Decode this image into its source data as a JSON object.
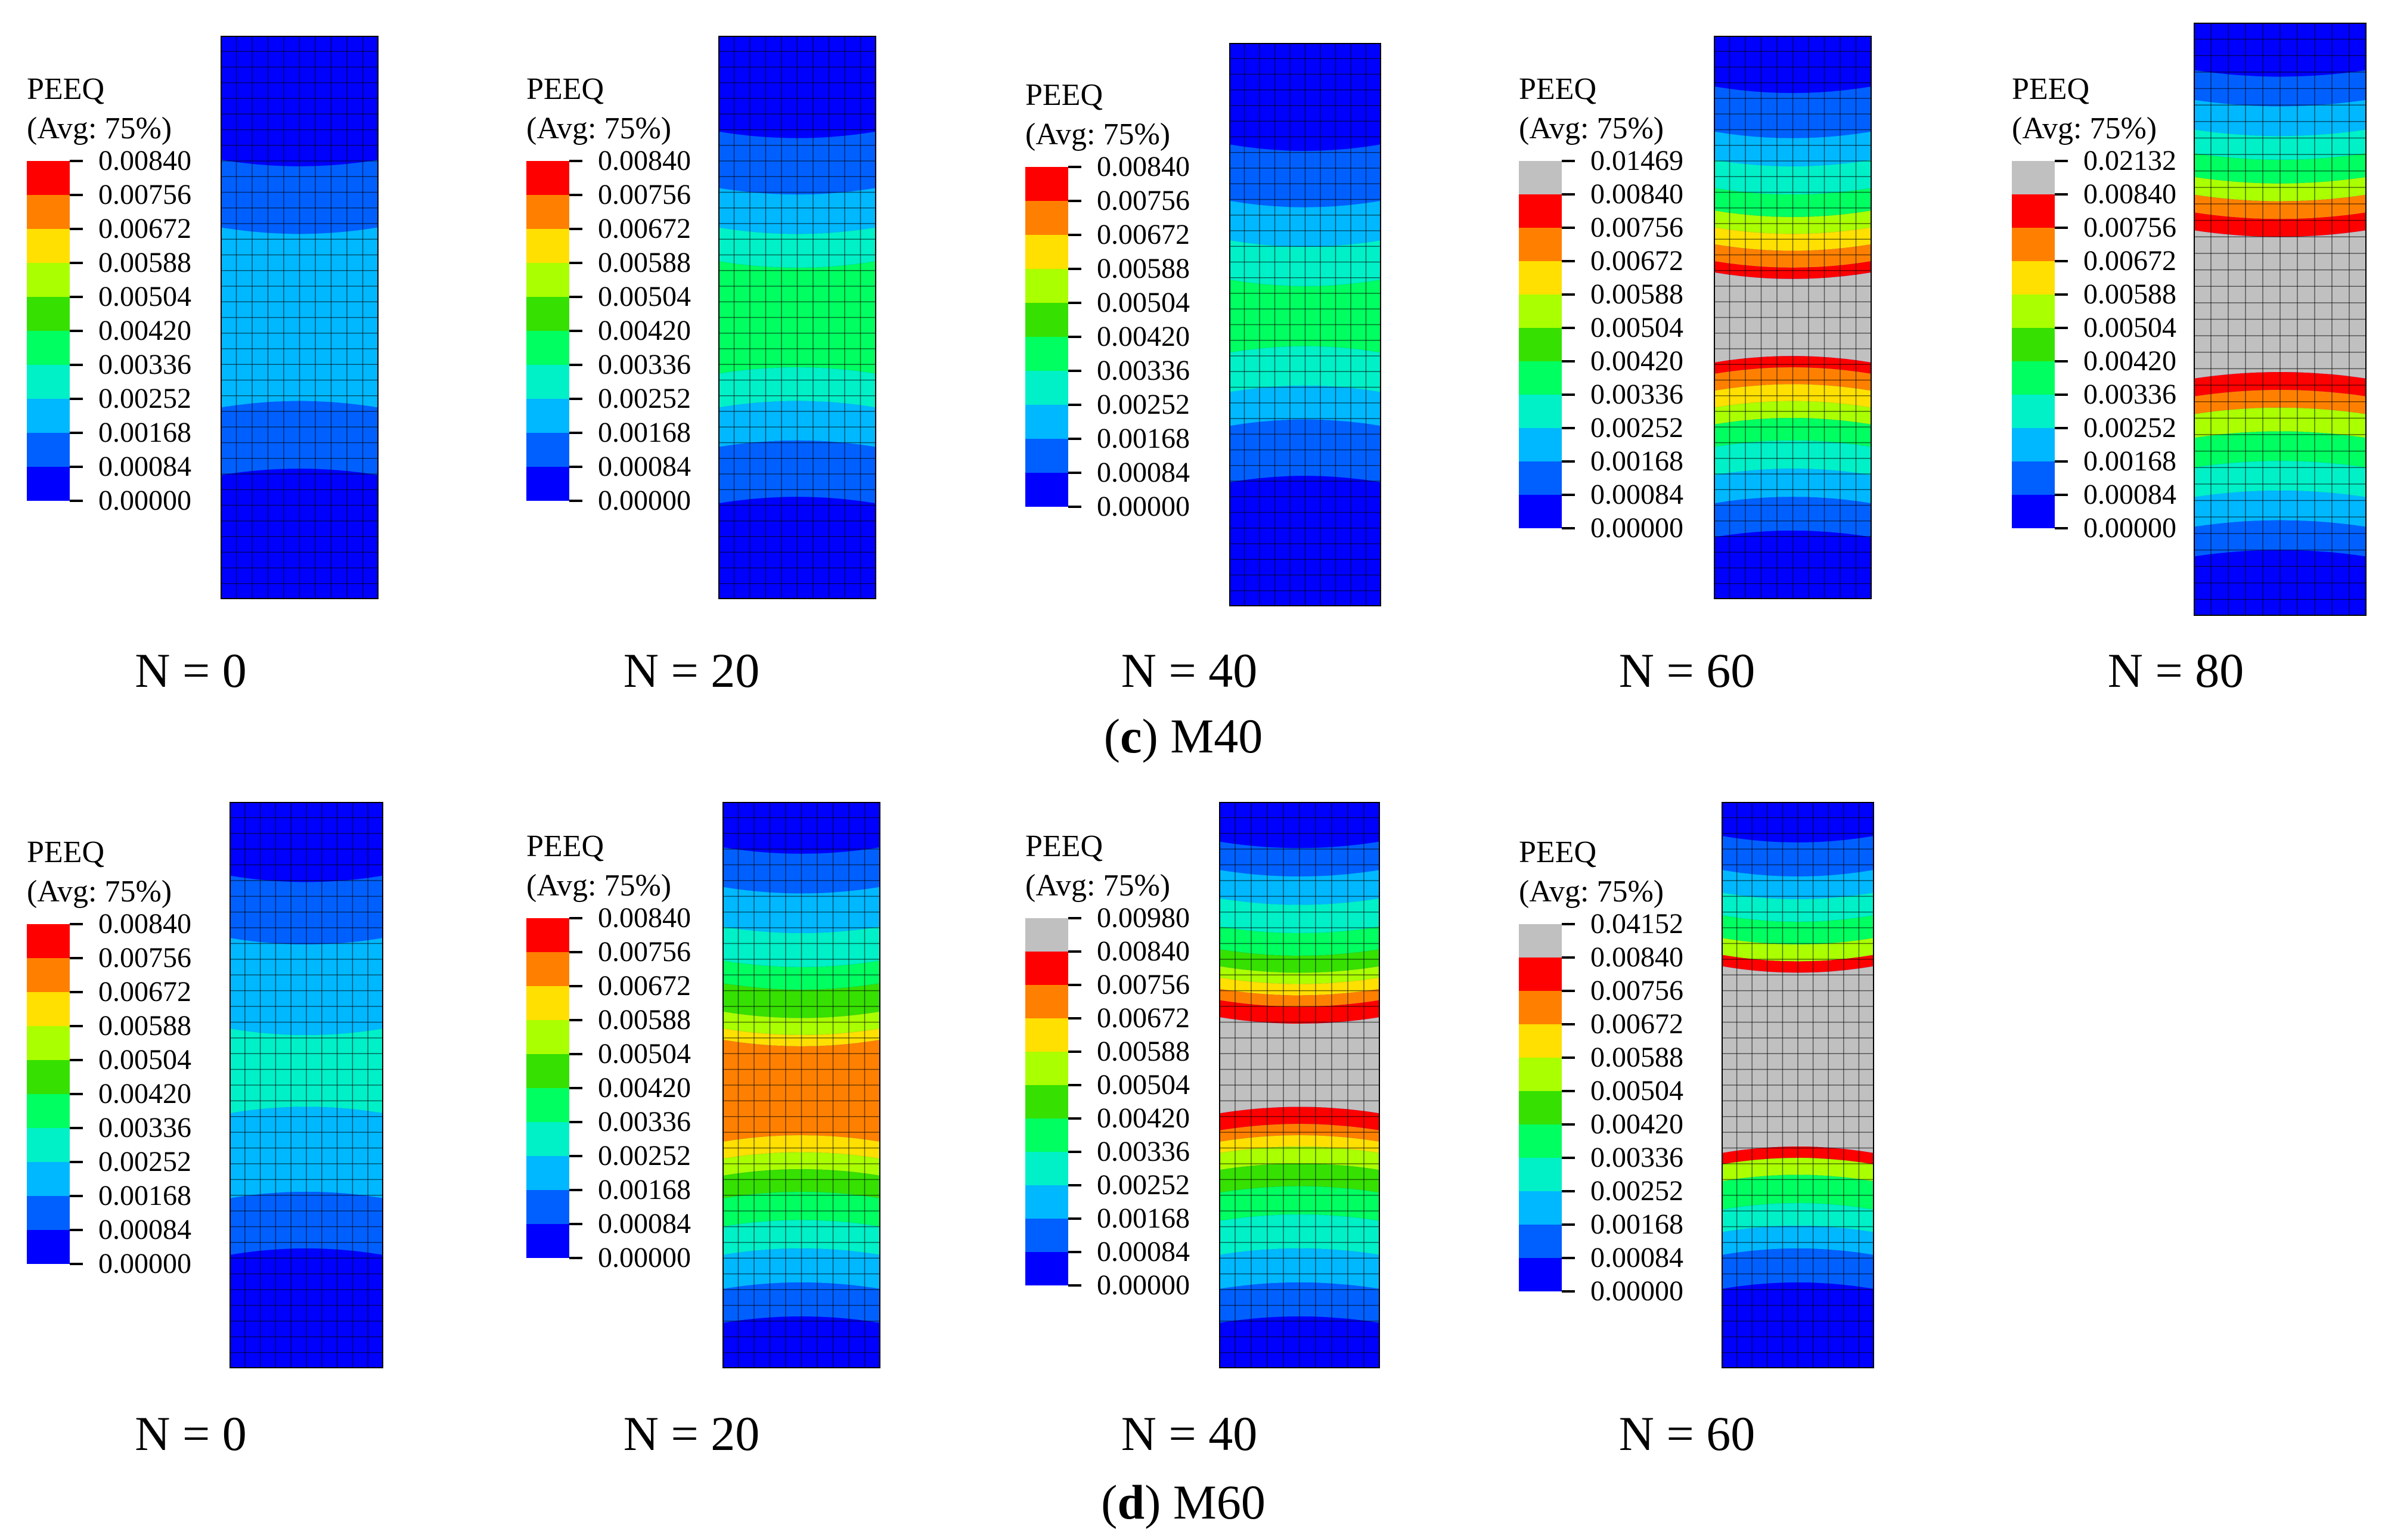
{
  "legend_header": {
    "title": "PEEQ",
    "subtitle": "(Avg: 75%)"
  },
  "colors": [
    "#0000ff",
    "#0060ff",
    "#00b8ff",
    "#00f0c8",
    "#00ff60",
    "#36e000",
    "#aaff00",
    "#ffe000",
    "#ff8000",
    "#ff0000",
    "#c0c0c0"
  ],
  "rows": [
    {
      "caption_label": "c",
      "caption_name": "M40",
      "panels": [
        {
          "n": "N = 0",
          "values": [
            "0.00840",
            "0.00756",
            "0.00672",
            "0.00588",
            "0.00504",
            "0.00420",
            "0.00336",
            "0.00252",
            "0.00168",
            "0.00084",
            "0.00000"
          ],
          "has_over": false,
          "state": "c0"
        },
        {
          "n": "N = 20",
          "values": [
            "0.00840",
            "0.00756",
            "0.00672",
            "0.00588",
            "0.00504",
            "0.00420",
            "0.00336",
            "0.00252",
            "0.00168",
            "0.00084",
            "0.00000"
          ],
          "has_over": false,
          "state": "c20"
        },
        {
          "n": "N = 40",
          "values": [
            "0.00840",
            "0.00756",
            "0.00672",
            "0.00588",
            "0.00504",
            "0.00420",
            "0.00336",
            "0.00252",
            "0.00168",
            "0.00084",
            "0.00000"
          ],
          "has_over": false,
          "state": "c40"
        },
        {
          "n": "N = 60",
          "values": [
            "0.01469",
            "0.00840",
            "0.00756",
            "0.00672",
            "0.00588",
            "0.00504",
            "0.00420",
            "0.00336",
            "0.00252",
            "0.00168",
            "0.00084",
            "0.00000"
          ],
          "has_over": true,
          "state": "c60"
        },
        {
          "n": "N = 80",
          "values": [
            "0.02132",
            "0.00840",
            "0.00756",
            "0.00672",
            "0.00588",
            "0.00504",
            "0.00420",
            "0.00336",
            "0.00252",
            "0.00168",
            "0.00084",
            "0.00000"
          ],
          "has_over": true,
          "state": "c80"
        }
      ]
    },
    {
      "caption_label": "d",
      "caption_name": "M60",
      "panels": [
        {
          "n": "N = 0",
          "values": [
            "0.00840",
            "0.00756",
            "0.00672",
            "0.00588",
            "0.00504",
            "0.00420",
            "0.00336",
            "0.00252",
            "0.00168",
            "0.00084",
            "0.00000"
          ],
          "has_over": false,
          "state": "d0"
        },
        {
          "n": "N = 20",
          "values": [
            "0.00840",
            "0.00756",
            "0.00672",
            "0.00588",
            "0.00504",
            "0.00420",
            "0.00336",
            "0.00252",
            "0.00168",
            "0.00084",
            "0.00000"
          ],
          "has_over": false,
          "state": "d20"
        },
        {
          "n": "N = 40",
          "values": [
            "0.00980",
            "0.00840",
            "0.00756",
            "0.00672",
            "0.00588",
            "0.00504",
            "0.00420",
            "0.00336",
            "0.00252",
            "0.00168",
            "0.00084",
            "0.00000"
          ],
          "has_over": true,
          "state": "d40"
        },
        {
          "n": "N = 60",
          "values": [
            "0.04152",
            "0.00840",
            "0.00756",
            "0.00672",
            "0.00588",
            "0.00504",
            "0.00420",
            "0.00336",
            "0.00252",
            "0.00168",
            "0.00084",
            "0.00000"
          ],
          "has_over": true,
          "state": "d60"
        }
      ]
    }
  ]
}
